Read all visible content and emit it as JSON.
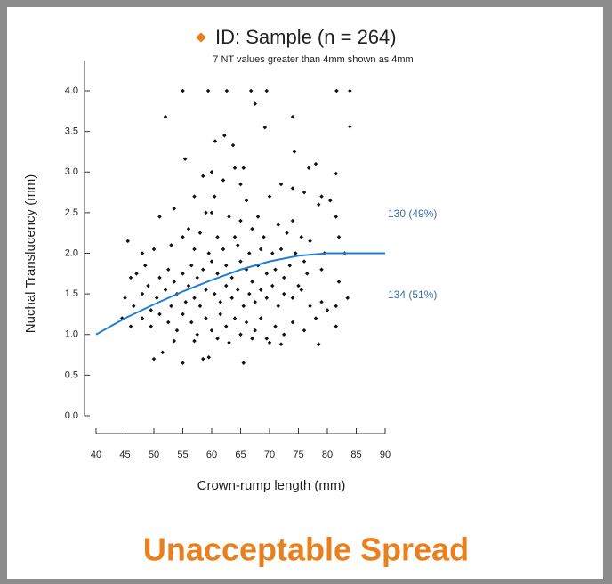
{
  "chart_data": {
    "type": "scatter",
    "subtitle": "7 NT values greater than 4mm shown as 4mm",
    "x_label": "Crown-rump length (mm)",
    "y_label": "Nuchal Translucency (mm)",
    "xlim": [
      40,
      90
    ],
    "xticks": [
      40,
      45,
      50,
      55,
      60,
      65,
      70,
      75,
      80,
      85,
      90
    ],
    "ylim": [
      0,
      4
    ],
    "yticks": [
      {
        "value": 0,
        "label": "0.0"
      },
      {
        "value": 0.5,
        "label": "0.5"
      },
      {
        "value": 1,
        "label": "1.0"
      },
      {
        "value": 1.5,
        "label": "1.5"
      },
      {
        "value": 2,
        "label": "2.0"
      },
      {
        "value": 2.5,
        "label": "2.5"
      },
      {
        "value": 3,
        "label": "3.0"
      },
      {
        "value": 3.5,
        "label": "3.5"
      },
      {
        "value": 4,
        "label": "4.0"
      }
    ],
    "series": [
      {
        "name": "ID: Sample (n = 264)",
        "color": "#e8801e",
        "marker_color": "#111111",
        "x": [
          55,
          59.4,
          62.6,
          66.8,
          69.5,
          81.6,
          83.9,
          52,
          67.5,
          74,
          83.9,
          69.2,
          62.2,
          60.6,
          63.7,
          55.4,
          74.3,
          60,
          64,
          65.5,
          76.8,
          78,
          81.5,
          58.5,
          62,
          65,
          72,
          74,
          76,
          79,
          80.5,
          57,
          60.5,
          66,
          70,
          78.5,
          53.5,
          59,
          60,
          63,
          65,
          68,
          71.5,
          74,
          81.5,
          51,
          56,
          58,
          61,
          64,
          67,
          69,
          73,
          75.5,
          77,
          82,
          45.5,
          48,
          50,
          53,
          55,
          57,
          59.5,
          62,
          64.5,
          66.5,
          68.5,
          70.5,
          72,
          74.5,
          76,
          79.5,
          83,
          46,
          47,
          48.5,
          49,
          51,
          52.5,
          53.5,
          55,
          56.5,
          57.5,
          58.5,
          60,
          61,
          62.5,
          63.5,
          65,
          66,
          67,
          68,
          69.5,
          71,
          72.5,
          73.5,
          75,
          76.5,
          79,
          82,
          45,
          46.5,
          48,
          49.5,
          50.5,
          52,
          53,
          54,
          55.5,
          56,
          57,
          58,
          59,
          60.5,
          61.5,
          62.5,
          63.5,
          64.5,
          65.5,
          66.5,
          67.5,
          68.5,
          69.5,
          70.5,
          71.5,
          72.5,
          74,
          75.5,
          77,
          79,
          81.5,
          83.5,
          44.5,
          46,
          48,
          49.5,
          51,
          52.5,
          54,
          55,
          56.5,
          57.5,
          59,
          60,
          61.5,
          62.5,
          64,
          65,
          66,
          67.5,
          68.5,
          69.5,
          71,
          72.5,
          74,
          76,
          78,
          80,
          81.5,
          50,
          51.5,
          55,
          58.5,
          59.5,
          65.5,
          53.5,
          57,
          63,
          67,
          70,
          72,
          78.5,
          61
        ],
        "values": [
          4,
          4,
          4,
          4,
          4,
          4,
          4,
          3.68,
          3.84,
          3.68,
          3.56,
          3.55,
          3.45,
          3.38,
          3.33,
          3.16,
          3.25,
          3,
          3.05,
          3.05,
          3.05,
          3.1,
          2.98,
          2.95,
          2.9,
          2.85,
          2.85,
          2.8,
          2.75,
          2.7,
          2.65,
          2.7,
          2.7,
          2.65,
          2.7,
          2.6,
          2.55,
          2.5,
          2.5,
          2.45,
          2.4,
          2.45,
          2.35,
          2.4,
          2.45,
          2.45,
          2.3,
          2.25,
          2.2,
          2.2,
          2.3,
          2.2,
          2.25,
          2.2,
          2.15,
          2.2,
          2.15,
          2,
          2.05,
          2.1,
          2.2,
          2.05,
          2,
          2.05,
          2.1,
          2,
          2.05,
          2,
          2.05,
          2,
          1.9,
          2,
          2,
          1.7,
          1.75,
          1.85,
          1.6,
          1.7,
          1.8,
          1.65,
          1.75,
          1.85,
          1.7,
          1.8,
          1.9,
          1.75,
          1.85,
          1.7,
          1.9,
          1.8,
          1.65,
          1.85,
          1.75,
          1.8,
          1.7,
          1.85,
          1.6,
          1.75,
          1.8,
          1.65,
          1.45,
          1.35,
          1.5,
          1.3,
          1.45,
          1.55,
          1.35,
          1.5,
          1.4,
          1.6,
          1.45,
          1.35,
          1.55,
          1.5,
          1.4,
          1.6,
          1.45,
          1.55,
          1.35,
          1.5,
          1.4,
          1.55,
          1.45,
          1.6,
          1.35,
          1.5,
          1.45,
          1.55,
          1.35,
          1.4,
          1.35,
          1.45,
          1.2,
          1.1,
          1.2,
          1.1,
          1.25,
          1.15,
          1.05,
          1.25,
          1.15,
          1,
          1.2,
          1.05,
          1.25,
          1.1,
          1.2,
          1,
          1.15,
          1.05,
          1.2,
          0.95,
          1.1,
          1,
          1.15,
          1.05,
          1.2,
          1.3,
          1.1,
          0.7,
          0.78,
          0.65,
          0.7,
          0.72,
          0.65,
          0.92,
          0.92,
          0.9,
          0.95,
          0.9,
          0.88,
          0.88,
          0.95
        ]
      }
    ],
    "curve": {
      "color": "#1f7fd6",
      "x": [
        40,
        45,
        50,
        55,
        60,
        65,
        70,
        75,
        80,
        85,
        90
      ],
      "values": [
        1,
        1.2,
        1.37,
        1.53,
        1.67,
        1.8,
        1.9,
        1.97,
        2,
        2,
        2
      ]
    },
    "annotations": [
      "130 (49%)",
      "134 (51%)"
    ],
    "footer": "Unacceptable Spread",
    "footer_color": "#e8801e",
    "annotation_color": "#3a6ea5"
  }
}
